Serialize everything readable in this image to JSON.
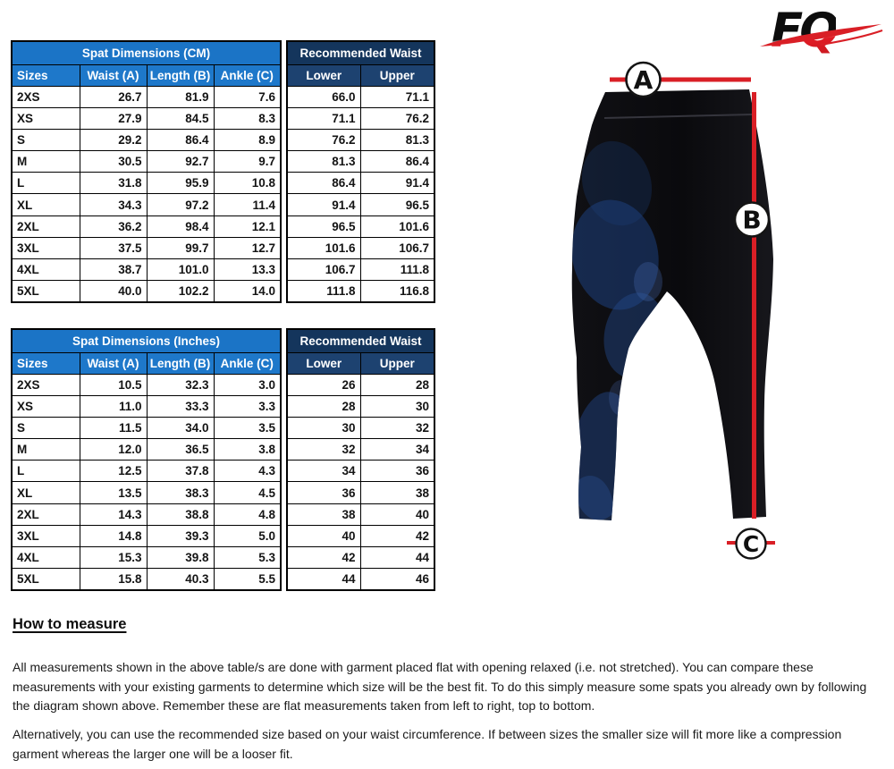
{
  "brand": {
    "name": "FQ"
  },
  "colors": {
    "header_blue": "#1b74c6",
    "header_navy": "#14355c",
    "subheader_navy": "#1d4270",
    "accent_red": "#d91f26",
    "garment_black": "#0b0b0e"
  },
  "tables": {
    "cm": {
      "title": "Spat Dimensions (CM)",
      "columns": [
        "Sizes",
        "Waist (A)",
        "Length (B)",
        "Ankle (C)"
      ],
      "rows": [
        [
          "2XS",
          "26.7",
          "81.9",
          "7.6"
        ],
        [
          "XS",
          "27.9",
          "84.5",
          "8.3"
        ],
        [
          "S",
          "29.2",
          "86.4",
          "8.9"
        ],
        [
          "M",
          "30.5",
          "92.7",
          "9.7"
        ],
        [
          "L",
          "31.8",
          "95.9",
          "10.8"
        ],
        [
          "XL",
          "34.3",
          "97.2",
          "11.4"
        ],
        [
          "2XL",
          "36.2",
          "98.4",
          "12.1"
        ],
        [
          "3XL",
          "37.5",
          "99.7",
          "12.7"
        ],
        [
          "4XL",
          "38.7",
          "101.0",
          "13.3"
        ],
        [
          "5XL",
          "40.0",
          "102.2",
          "14.0"
        ]
      ]
    },
    "cm_waist": {
      "title": "Recommended Waist",
      "columns": [
        "Lower",
        "Upper"
      ],
      "rows": [
        [
          "66.0",
          "71.1"
        ],
        [
          "71.1",
          "76.2"
        ],
        [
          "76.2",
          "81.3"
        ],
        [
          "81.3",
          "86.4"
        ],
        [
          "86.4",
          "91.4"
        ],
        [
          "91.4",
          "96.5"
        ],
        [
          "96.5",
          "101.6"
        ],
        [
          "101.6",
          "106.7"
        ],
        [
          "106.7",
          "111.8"
        ],
        [
          "111.8",
          "116.8"
        ]
      ]
    },
    "inches": {
      "title": "Spat Dimensions (Inches)",
      "columns": [
        "Sizes",
        "Waist (A)",
        "Length (B)",
        "Ankle (C)"
      ],
      "rows": [
        [
          "2XS",
          "10.5",
          "32.3",
          "3.0"
        ],
        [
          "XS",
          "11.0",
          "33.3",
          "3.3"
        ],
        [
          "S",
          "11.5",
          "34.0",
          "3.5"
        ],
        [
          "M",
          "12.0",
          "36.5",
          "3.8"
        ],
        [
          "L",
          "12.5",
          "37.8",
          "4.3"
        ],
        [
          "XL",
          "13.5",
          "38.3",
          "4.5"
        ],
        [
          "2XL",
          "14.3",
          "38.8",
          "4.8"
        ],
        [
          "3XL",
          "14.8",
          "39.3",
          "5.0"
        ],
        [
          "4XL",
          "15.3",
          "39.8",
          "5.3"
        ],
        [
          "5XL",
          "15.8",
          "40.3",
          "5.5"
        ]
      ]
    },
    "inches_waist": {
      "title": "Recommended Waist",
      "columns": [
        "Lower",
        "Upper"
      ],
      "rows": [
        [
          "26",
          "28"
        ],
        [
          "28",
          "30"
        ],
        [
          "30",
          "32"
        ],
        [
          "32",
          "34"
        ],
        [
          "34",
          "36"
        ],
        [
          "36",
          "38"
        ],
        [
          "38",
          "40"
        ],
        [
          "40",
          "42"
        ],
        [
          "42",
          "44"
        ],
        [
          "44",
          "46"
        ]
      ]
    }
  },
  "diagram": {
    "label_a": "A",
    "label_b": "B",
    "label_c": "C"
  },
  "how_to_measure": {
    "heading": "How to measure",
    "paragraph_1": "All measurements shown in the above table/s are done with garment placed flat with opening relaxed (i.e. not stretched). You can compare these measurements with your existing garments to determine which size will be the best fit. To do this simply measure some spats you already own by following the diagram shown above.  Remember these are flat measurements taken from left to right, top to bottom.",
    "paragraph_2": "Alternatively, you can use the recommended size based on your waist circumference. If between sizes the smaller size will fit more like a compression garment whereas the larger one will be a looser fit."
  }
}
